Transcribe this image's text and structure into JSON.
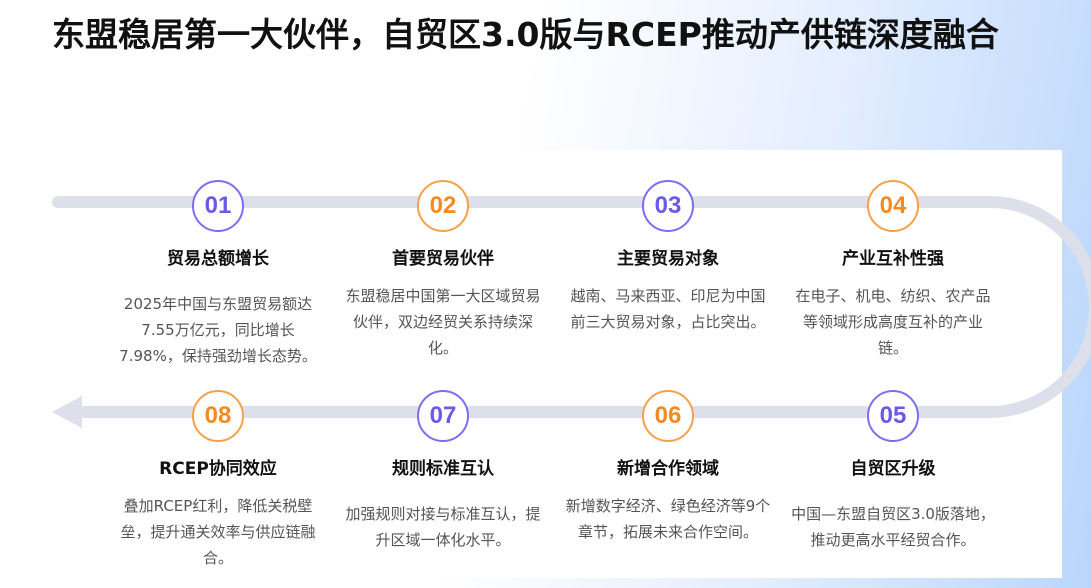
{
  "title": "东盟稳居第一大伙伴，自贸区3.0版与RCEP推动产供链深度融合",
  "colors": {
    "purple": "#6a5ae8",
    "orange": "#f58a1f",
    "track": "#dde0ea"
  },
  "steps": [
    {
      "num": "01",
      "title": "贸易总额增长",
      "desc": "2025年中国与东盟贸易额达7.55万亿元，同比增长7.98%，保持强劲增长态势。"
    },
    {
      "num": "02",
      "title": "首要贸易伙伴",
      "desc": "东盟稳居中国第一大区域贸易伙伴，双边经贸关系持续深化。"
    },
    {
      "num": "03",
      "title": "主要贸易对象",
      "desc": "越南、马来西亚、印尼为中国前三大贸易对象，占比突出。"
    },
    {
      "num": "04",
      "title": "产业互补性强",
      "desc": "在电子、机电、纺织、农产品等领域形成高度互补的产业链。"
    },
    {
      "num": "05",
      "title": "自贸区升级",
      "desc": "中国—东盟自贸区3.0版落地，推动更高水平经贸合作。"
    },
    {
      "num": "06",
      "title": "新增合作领域",
      "desc": "新增数字经济、绿色经济等9个章节，拓展未来合作空间。"
    },
    {
      "num": "07",
      "title": "规则标准互认",
      "desc": "加强规则对接与标准互认，提升区域一体化水平。"
    },
    {
      "num": "08",
      "title": "RCEP协同效应",
      "desc": "叠加RCEP红利，降低关税壁垒，提升通关效率与供应链融合。"
    }
  ]
}
